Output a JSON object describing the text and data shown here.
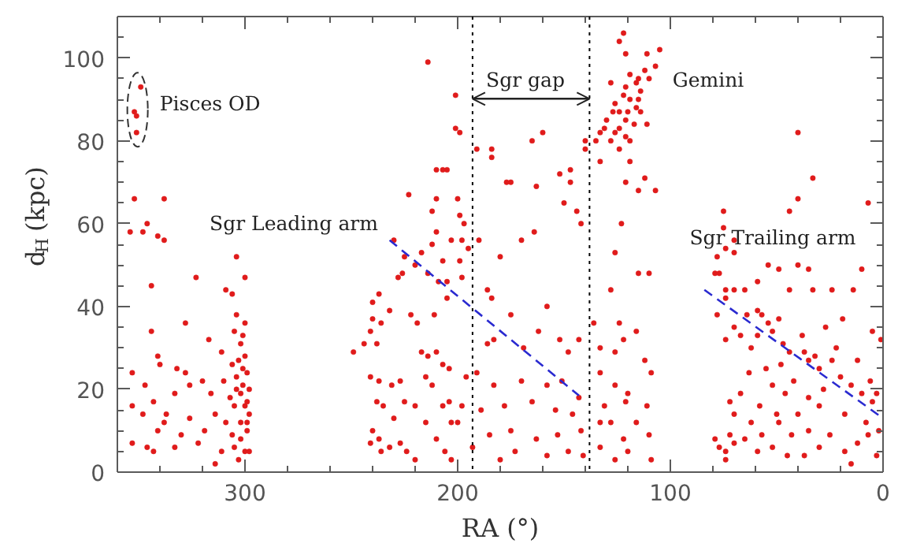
{
  "chart_data": {
    "type": "scatter",
    "xlabel": "RA (°)",
    "ylabel": "d$_{H}$ (kpc)",
    "xlim": [
      360,
      0
    ],
    "ylim": [
      0,
      110
    ],
    "xticks": [
      {
        "value": 340,
        "label": null
      },
      {
        "value": 320,
        "label": null
      },
      300,
      {
        "value": 280,
        "label": null
      },
      {
        "value": 260,
        "label": null
      },
      {
        "value": 240,
        "label": null
      },
      {
        "value": 220,
        "label": null
      },
      200,
      {
        "value": 180,
        "label": null
      },
      {
        "value": 160,
        "label": null
      },
      {
        "value": 140,
        "label": null
      },
      {
        "value": 120,
        "label": null
      },
      100,
      {
        "value": 80,
        "label": null
      },
      {
        "value": 60,
        "label": null
      },
      {
        "value": 40,
        "label": null
      },
      {
        "value": 20,
        "label": null
      },
      0
    ],
    "yticks": [
      0,
      {
        "value": 5,
        "label": null
      },
      {
        "value": 10,
        "label": null
      },
      {
        "value": 15,
        "label": null
      },
      20,
      {
        "value": 25,
        "label": null
      },
      {
        "value": 30,
        "label": null
      },
      {
        "value": 35,
        "label": null
      },
      40,
      {
        "value": 45,
        "label": null
      },
      {
        "value": 50,
        "label": null
      },
      {
        "value": 55,
        "label": null
      },
      60,
      {
        "value": 65,
        "label": null
      },
      {
        "value": 70,
        "label": null
      },
      {
        "value": 75,
        "label": null
      },
      80,
      {
        "value": 85,
        "label": null
      },
      {
        "value": 90,
        "label": null
      },
      {
        "value": 95,
        "label": null
      },
      100,
      {
        "value": 105,
        "label": null
      }
    ],
    "marker": "circle",
    "series": [
      {
        "color": "#e01b1b",
        "x": [
          344,
          323,
          300,
          309,
          306,
          304,
          300,
          328,
          344,
          317,
          353,
          341,
          332,
          340,
          328,
          311,
          302,
          306,
          299,
          320,
          310,
          301,
          316,
          333,
          343,
          353,
          348,
          337,
          326,
          314,
          305,
          298,
          302,
          309,
          341,
          330,
          319,
          306,
          299,
          353,
          346,
          333,
          322,
          311,
          300,
          343,
          314,
          298,
          326,
          347,
          338,
          302,
          300,
          304,
          301,
          305,
          299,
          352,
          338,
          354,
          348,
          346,
          341,
          338,
          304,
          303,
          300,
          304,
          299,
          302,
          305,
          303,
          307,
          301,
          298,
          349,
          352,
          351,
          351
        ],
        "values": [
          45,
          47,
          47,
          44,
          43,
          38,
          36,
          36,
          34,
          32,
          24,
          28,
          25,
          26,
          24,
          29,
          31,
          26,
          24,
          22,
          22,
          21,
          19,
          19,
          17,
          16,
          14,
          14,
          13,
          14,
          16,
          14,
          12,
          12,
          10,
          9,
          10,
          9,
          10,
          7,
          6,
          6,
          7,
          5,
          5,
          5,
          2,
          5,
          21,
          21,
          12,
          19,
          16,
          23,
          33,
          34,
          17,
          66,
          66,
          58,
          58,
          60,
          57,
          56,
          52,
          27,
          28,
          20,
          12,
          8,
          6,
          3,
          18,
          25,
          20,
          93,
          87,
          86,
          82
        ]
      },
      {
        "color": "#e01b1b",
        "x": [
          249,
          244,
          241,
          240,
          240,
          237,
          236,
          238,
          232,
          228,
          226,
          222,
          219,
          217,
          214,
          210,
          207,
          215,
          212,
          241,
          237,
          231,
          227,
          238,
          235,
          230,
          225,
          220,
          240,
          237,
          241,
          236,
          232,
          227,
          224,
          220,
          215,
          210,
          206,
          203,
          204,
          214,
          209,
          211,
          205,
          230,
          225,
          217,
          212,
          207,
          203,
          220,
          210,
          214,
          223,
          210,
          205,
          210,
          212,
          201,
          201,
          199,
          207,
          200,
          199,
          197,
          198,
          195,
          199,
          190,
          191,
          186,
          184,
          175,
          183,
          186,
          169,
          162,
          158,
          148,
          143,
          152,
          204,
          196,
          191,
          183,
          170,
          158,
          151,
          143,
          207,
          198,
          189,
          178,
          165,
          154,
          146,
          200,
          185,
          175,
          163,
          153,
          142,
          193,
          173,
          158,
          148,
          203,
          180,
          141,
          205,
          198,
          184,
          184,
          165,
          160,
          177,
          175,
          163,
          152,
          147,
          147,
          150,
          144,
          142,
          164,
          170,
          180
        ],
        "values": [
          29,
          31,
          34,
          41,
          37,
          43,
          36,
          31,
          39,
          47,
          48,
          38,
          36,
          29,
          28,
          29,
          26,
          23,
          21,
          23,
          22,
          21,
          22,
          17,
          16,
          13,
          17,
          16,
          10,
          8,
          7,
          5,
          6,
          7,
          5,
          3,
          12,
          8,
          5,
          12,
          17,
          48,
          46,
          38,
          42,
          56,
          52,
          53,
          55,
          51,
          56,
          50,
          58,
          99,
          67,
          73,
          73,
          66,
          63,
          91,
          83,
          82,
          73,
          66,
          62,
          60,
          56,
          54,
          51,
          56,
          78,
          44,
          42,
          38,
          32,
          31,
          30,
          34,
          40,
          29,
          32,
          32,
          25,
          23,
          24,
          21,
          22,
          21,
          22,
          18,
          16,
          16,
          15,
          16,
          17,
          15,
          14,
          12,
          9,
          10,
          8,
          9,
          10,
          6,
          5,
          4,
          5,
          3,
          3,
          4,
          46,
          47,
          78,
          76,
          80,
          82,
          70,
          70,
          69,
          72,
          73,
          70,
          65,
          63,
          60,
          58,
          56,
          52
        ]
      },
      {
        "color": "#e01b1b",
        "x": [
          122,
          124,
          121,
          111,
          105,
          107,
          112,
          119,
          115,
          110,
          128,
          121,
          116,
          114,
          122,
          119,
          115,
          116,
          126,
          124,
          120,
          114,
          127,
          130,
          121,
          117,
          124,
          111,
          133,
          131,
          126,
          135,
          128,
          121,
          119,
          140,
          124,
          140,
          133,
          119,
          112,
          121,
          107,
          115,
          123,
          126,
          133,
          126,
          122,
          112,
          109,
          133,
          126,
          120,
          121,
          131,
          111,
          133,
          128,
          116,
          110,
          122,
          133,
          120,
          126,
          109,
          115,
          110,
          128,
          116,
          124,
          136
        ],
        "values": [
          106,
          104,
          101,
          101,
          102,
          98,
          97,
          96,
          95,
          95,
          94,
          93,
          94,
          92,
          91,
          90,
          90,
          88,
          89,
          87,
          87,
          87,
          87,
          85,
          85,
          84,
          83,
          84,
          82,
          83,
          82,
          80,
          80,
          81,
          80,
          80,
          78,
          78,
          75,
          75,
          71,
          70,
          68,
          68,
          60,
          53,
          30,
          29,
          32,
          27,
          24,
          24,
          21,
          19,
          17,
          16,
          16,
          12,
          12,
          12,
          9,
          8,
          6,
          5,
          3,
          3,
          48,
          48,
          44,
          34,
          36,
          36
        ]
      },
      {
        "color": "#e01b1b",
        "x": [
          40,
          33,
          40,
          44,
          7,
          75,
          75,
          70,
          74,
          70,
          54,
          49,
          40,
          35,
          10,
          78,
          79,
          77,
          74,
          70,
          74,
          65,
          78,
          70,
          64,
          59,
          57,
          54,
          49,
          52,
          59,
          67,
          74,
          62,
          47,
          44,
          37,
          32,
          35,
          30,
          24,
          20,
          15,
          10,
          5,
          3,
          6,
          63,
          67,
          72,
          52,
          46,
          35,
          30,
          40,
          49,
          57,
          43,
          35,
          25,
          12,
          7,
          79,
          77,
          74,
          74,
          70,
          65,
          72,
          59,
          52,
          15,
          37,
          70,
          24,
          19,
          14,
          44,
          33,
          59,
          5,
          1,
          55,
          48,
          42,
          28,
          18,
          8,
          2,
          22,
          12,
          58,
          62,
          45,
          30,
          18,
          3,
          50,
          38,
          27
        ],
        "values": [
          82,
          71,
          66,
          63,
          65,
          63,
          59,
          56,
          54,
          53,
          50,
          49,
          50,
          49,
          49,
          52,
          48,
          48,
          44,
          44,
          42,
          44,
          38,
          35,
          38,
          39,
          38,
          36,
          37,
          34,
          33,
          33,
          32,
          30,
          31,
          29,
          29,
          28,
          27,
          25,
          27,
          23,
          21,
          19,
          17,
          19,
          22,
          24,
          19,
          17,
          21,
          19,
          18,
          16,
          14,
          12,
          9,
          9,
          10,
          9,
          7,
          9,
          8,
          6,
          3,
          5,
          7,
          8,
          9,
          5,
          6,
          2,
          4,
          14,
          44,
          37,
          44,
          44,
          44,
          46,
          34,
          32,
          25,
          26,
          22,
          20,
          14,
          12,
          10,
          30,
          27,
          16,
          12,
          4,
          6,
          5,
          4,
          14,
          33,
          35
        ]
      },
      {
        "type": "line",
        "color": "#2a2ad0",
        "x": [
          232,
          143
        ],
        "values": [
          56,
          18.5
        ],
        "line_style": "dashed",
        "marker": "none"
      },
      {
        "type": "line",
        "color": "#2a2ad0",
        "x": [
          84,
          0
        ],
        "values": [
          44,
          13
        ],
        "line_style": "dashed",
        "marker": "none"
      }
    ],
    "ref_lines": [
      {
        "axis": "x",
        "value": 193,
        "color": "#000000",
        "line_style": "dotted"
      },
      {
        "axis": "x",
        "value": 138,
        "color": "#000000",
        "line_style": "dotted"
      }
    ],
    "annotations": [
      {
        "text": "Pisces OD",
        "x": 350.5,
        "y": 87.5
      },
      "Sgr gap",
      "Gemini",
      "Sgr Leading arm",
      "Sgr Trailing arm"
    ]
  }
}
